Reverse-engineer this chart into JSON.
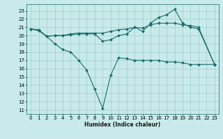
{
  "xlabel": "Humidex (Indice chaleur)",
  "x_ticks": [
    0,
    1,
    2,
    3,
    4,
    5,
    6,
    7,
    8,
    9,
    10,
    11,
    12,
    13,
    14,
    15,
    16,
    17,
    18,
    19,
    20,
    21,
    22,
    23
  ],
  "ylim": [
    10.5,
    23.8
  ],
  "xlim": [
    -0.5,
    23.5
  ],
  "y_ticks": [
    11,
    12,
    13,
    14,
    15,
    16,
    17,
    18,
    19,
    20,
    21,
    22,
    23
  ],
  "bg_color": "#c8eaea",
  "grid_color": "#b0d8d8",
  "line_color": "#1a6b6b",
  "line1_x": [
    0,
    1,
    2,
    3,
    4,
    5,
    6,
    7,
    8,
    9,
    10,
    11,
    12,
    13,
    14,
    15,
    16,
    17,
    18,
    19,
    20,
    21,
    23
  ],
  "line1_y": [
    20.8,
    20.7,
    19.9,
    19.0,
    18.3,
    18.0,
    17.0,
    15.8,
    13.5,
    11.2,
    15.2,
    17.3,
    17.2,
    17.0,
    17.0,
    17.0,
    17.0,
    16.8,
    16.8,
    16.7,
    16.5,
    16.5,
    16.5
  ],
  "line2_x": [
    0,
    1,
    2,
    3,
    4,
    5,
    6,
    7,
    8,
    9,
    10,
    11,
    12,
    13,
    14,
    15,
    16,
    17,
    18,
    19,
    20,
    21,
    23
  ],
  "line2_y": [
    20.8,
    20.6,
    19.9,
    20.0,
    20.0,
    20.1,
    20.2,
    20.2,
    20.2,
    19.3,
    19.5,
    20.0,
    20.2,
    21.0,
    20.5,
    21.5,
    22.2,
    22.5,
    23.2,
    21.5,
    21.0,
    20.8,
    16.5
  ],
  "line3_x": [
    0,
    1,
    2,
    3,
    4,
    5,
    6,
    7,
    8,
    9,
    10,
    11,
    12,
    13,
    14,
    15,
    16,
    17,
    18,
    19,
    20,
    21,
    23
  ],
  "line3_y": [
    20.8,
    20.6,
    19.9,
    20.0,
    20.0,
    20.2,
    20.3,
    20.3,
    20.3,
    20.3,
    20.5,
    20.7,
    20.8,
    21.0,
    20.9,
    21.3,
    21.5,
    21.5,
    21.5,
    21.3,
    21.2,
    21.0,
    16.5
  ]
}
